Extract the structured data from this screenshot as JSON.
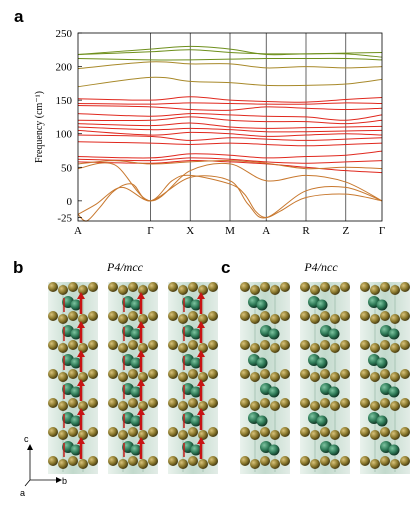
{
  "panels": {
    "a": "a",
    "b": "b",
    "c": "c"
  },
  "titles": {
    "b": "P4/mcc",
    "c": "P4/ncc"
  },
  "axes_labels": {
    "a": "a",
    "b": "b",
    "c": "c"
  },
  "colors": {
    "green": "#6e8f1c",
    "olive": "#a8892a",
    "orange": "#c8782e",
    "red": "#e0281e",
    "atom_gold": "#8c7a2e",
    "atom_green": "#2e7a57",
    "arrow": "#c81414",
    "poly": "#bcd6c8"
  },
  "chart_data": {
    "type": "line",
    "title": "",
    "xlabel": "",
    "ylabel": "Frequency (cm⁻¹)",
    "ylim": [
      -30,
      250
    ],
    "yticks": [
      -25,
      0,
      50,
      100,
      150,
      200,
      250
    ],
    "grid": "vertical lines at high-symmetry points",
    "kpoints": [
      "A",
      "Γ",
      "X",
      "M",
      "A",
      "R",
      "Z",
      "Γ"
    ],
    "kpos": [
      0,
      1,
      1.55,
      2.1,
      2.6,
      3.15,
      3.7,
      4.2
    ],
    "series": [
      {
        "color": "green",
        "points": [
          [
            0,
            218
          ],
          [
            1,
            222
          ],
          [
            1.55,
            225
          ],
          [
            2.1,
            221
          ],
          [
            2.6,
            219
          ],
          [
            3.15,
            219
          ],
          [
            3.7,
            220
          ],
          [
            4.2,
            221
          ]
        ]
      },
      {
        "color": "green",
        "points": [
          [
            0,
            218
          ],
          [
            1,
            226
          ],
          [
            1.55,
            230
          ],
          [
            2.1,
            226
          ],
          [
            2.6,
            218
          ],
          [
            3.15,
            219
          ],
          [
            3.7,
            219
          ],
          [
            4.2,
            214
          ]
        ]
      },
      {
        "color": "green",
        "points": [
          [
            0,
            212
          ],
          [
            1,
            210
          ],
          [
            1.55,
            210
          ],
          [
            2.1,
            211
          ],
          [
            2.6,
            212
          ],
          [
            3.15,
            212
          ],
          [
            3.7,
            212
          ],
          [
            4.2,
            210
          ]
        ]
      },
      {
        "color": "olive",
        "points": [
          [
            0,
            197
          ],
          [
            1,
            207
          ],
          [
            1.55,
            204
          ],
          [
            2.1,
            204
          ],
          [
            2.6,
            198
          ],
          [
            3.15,
            200
          ],
          [
            3.7,
            198
          ],
          [
            4.2,
            200
          ]
        ]
      },
      {
        "color": "olive",
        "points": [
          [
            0,
            170
          ],
          [
            1,
            184
          ],
          [
            1.55,
            178
          ],
          [
            2.1,
            176
          ],
          [
            2.6,
            172
          ],
          [
            3.15,
            172
          ],
          [
            3.7,
            174
          ],
          [
            4.2,
            181
          ]
        ]
      },
      {
        "color": "red",
        "points": [
          [
            0,
            152
          ],
          [
            1,
            150
          ],
          [
            1.55,
            155
          ],
          [
            2.1,
            150
          ],
          [
            2.6,
            148
          ],
          [
            3.15,
            147
          ],
          [
            3.7,
            151
          ],
          [
            4.2,
            154
          ]
        ]
      },
      {
        "color": "red",
        "points": [
          [
            0,
            145
          ],
          [
            1,
            144
          ],
          [
            1.55,
            146
          ],
          [
            2.1,
            145
          ],
          [
            2.6,
            144
          ],
          [
            3.15,
            144
          ],
          [
            3.7,
            146
          ],
          [
            4.2,
            145
          ]
        ]
      },
      {
        "color": "red",
        "points": [
          [
            0,
            142
          ],
          [
            1,
            140
          ],
          [
            1.55,
            136
          ],
          [
            2.1,
            135
          ],
          [
            2.6,
            140
          ],
          [
            3.15,
            138
          ],
          [
            3.7,
            136
          ],
          [
            4.2,
            138
          ]
        ]
      },
      {
        "color": "red",
        "points": [
          [
            0,
            130
          ],
          [
            1,
            126
          ],
          [
            1.55,
            130
          ],
          [
            2.1,
            128
          ],
          [
            2.6,
            126
          ],
          [
            3.15,
            125
          ],
          [
            3.7,
            120
          ],
          [
            4.2,
            128
          ]
        ]
      },
      {
        "color": "red",
        "points": [
          [
            0,
            120
          ],
          [
            1,
            120
          ],
          [
            1.55,
            125
          ],
          [
            2.1,
            120
          ],
          [
            2.6,
            118
          ],
          [
            3.15,
            118
          ],
          [
            3.7,
            115
          ],
          [
            4.2,
            120
          ]
        ]
      },
      {
        "color": "red",
        "points": [
          [
            0,
            115
          ],
          [
            1,
            112
          ],
          [
            1.55,
            116
          ],
          [
            2.1,
            110
          ],
          [
            2.6,
            108
          ],
          [
            3.15,
            109
          ],
          [
            3.7,
            110
          ],
          [
            4.2,
            111
          ]
        ]
      },
      {
        "color": "red",
        "points": [
          [
            0,
            110
          ],
          [
            1,
            106
          ],
          [
            1.55,
            108
          ],
          [
            2.1,
            106
          ],
          [
            2.6,
            103
          ],
          [
            3.15,
            103
          ],
          [
            3.7,
            104
          ],
          [
            4.2,
            105
          ]
        ]
      },
      {
        "color": "red",
        "points": [
          [
            0,
            105
          ],
          [
            1,
            98
          ],
          [
            1.55,
            102
          ],
          [
            2.1,
            100
          ],
          [
            2.6,
            96
          ],
          [
            3.15,
            98
          ],
          [
            3.7,
            100
          ],
          [
            4.2,
            98
          ]
        ]
      },
      {
        "color": "red",
        "points": [
          [
            0,
            98
          ],
          [
            1,
            96
          ],
          [
            1.55,
            90
          ],
          [
            2.1,
            94
          ],
          [
            2.6,
            92
          ],
          [
            3.15,
            90
          ],
          [
            3.7,
            92
          ],
          [
            4.2,
            94
          ]
        ]
      },
      {
        "color": "red",
        "points": [
          [
            0,
            88
          ],
          [
            1,
            86
          ],
          [
            1.55,
            84
          ],
          [
            2.1,
            86
          ],
          [
            2.6,
            84
          ],
          [
            3.15,
            82
          ],
          [
            3.7,
            84
          ],
          [
            4.2,
            86
          ]
        ]
      },
      {
        "color": "red",
        "points": [
          [
            0,
            66
          ],
          [
            1,
            64
          ],
          [
            1.55,
            70
          ],
          [
            2.1,
            68
          ],
          [
            2.6,
            64
          ],
          [
            3.15,
            66
          ],
          [
            3.7,
            68
          ],
          [
            4.2,
            74
          ]
        ]
      },
      {
        "color": "red",
        "points": [
          [
            0,
            62
          ],
          [
            1,
            60
          ],
          [
            1.55,
            64
          ],
          [
            2.1,
            62
          ],
          [
            2.6,
            58
          ],
          [
            3.15,
            56
          ],
          [
            3.7,
            58
          ],
          [
            4.2,
            60
          ]
        ]
      },
      {
        "color": "red",
        "points": [
          [
            0,
            58
          ],
          [
            1,
            56
          ],
          [
            1.55,
            60
          ],
          [
            2.1,
            58
          ],
          [
            2.6,
            55
          ],
          [
            3.15,
            50
          ],
          [
            3.7,
            45
          ],
          [
            4.2,
            42
          ]
        ]
      },
      {
        "color": "orange",
        "points": [
          [
            0,
            55
          ],
          [
            0.5,
            60
          ],
          [
            1,
            55
          ],
          [
            1.55,
            58
          ],
          [
            2.1,
            60
          ],
          [
            2.6,
            56
          ],
          [
            3.15,
            48
          ],
          [
            3.7,
            50
          ],
          [
            4.2,
            48
          ]
        ]
      },
      {
        "color": "orange",
        "points": [
          [
            0,
            48
          ],
          [
            0.5,
            54
          ],
          [
            1,
            0
          ],
          [
            1.55,
            45
          ],
          [
            2.1,
            55
          ],
          [
            2.6,
            30
          ],
          [
            3.15,
            38
          ],
          [
            3.7,
            28
          ],
          [
            4.2,
            0
          ]
        ]
      },
      {
        "color": "orange",
        "points": [
          [
            0,
            -20
          ],
          [
            0.12,
            -30
          ],
          [
            0.3,
            -10
          ],
          [
            0.5,
            15
          ],
          [
            0.75,
            25
          ],
          [
            1,
            0
          ],
          [
            1.55,
            35
          ],
          [
            2.1,
            30
          ],
          [
            2.35,
            -5
          ],
          [
            2.6,
            -25
          ],
          [
            3.15,
            15
          ],
          [
            3.7,
            20
          ],
          [
            4.2,
            0
          ]
        ]
      },
      {
        "color": "orange",
        "points": [
          [
            0,
            -20
          ],
          [
            0.25,
            -5
          ],
          [
            0.6,
            20
          ],
          [
            1,
            0
          ],
          [
            1.3,
            30
          ],
          [
            1.55,
            38
          ],
          [
            2.1,
            25
          ],
          [
            2.3,
            10
          ],
          [
            2.45,
            -15
          ],
          [
            2.6,
            -25
          ],
          [
            2.8,
            -15
          ],
          [
            3.15,
            5
          ],
          [
            3.7,
            10
          ],
          [
            4.2,
            0
          ]
        ]
      }
    ]
  }
}
